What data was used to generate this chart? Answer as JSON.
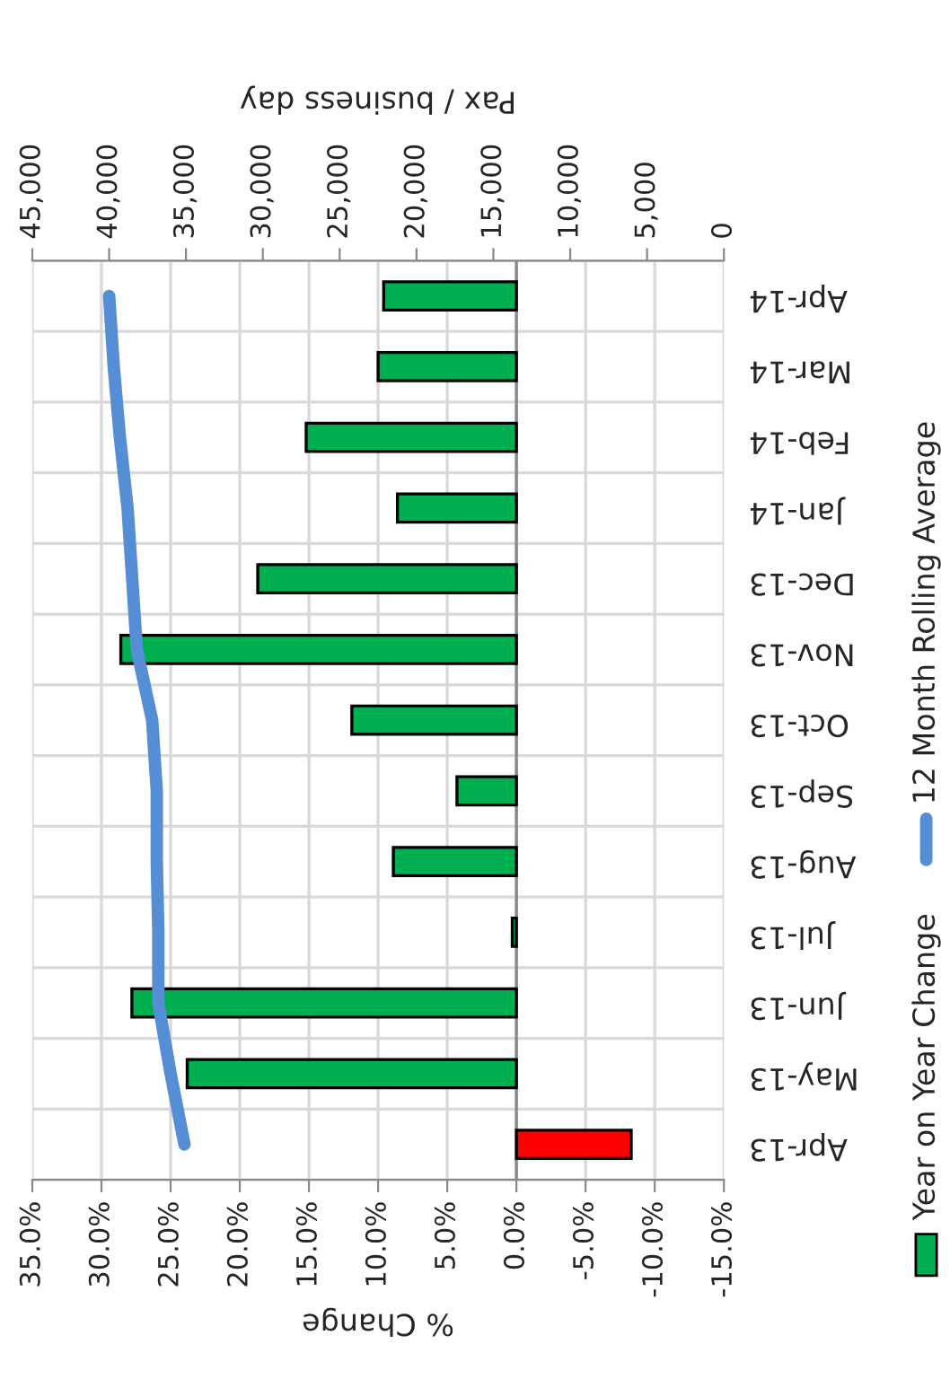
{
  "chart_data": {
    "type": "bar",
    "orientation": "horizontal",
    "categories": [
      "Apr-14",
      "Mar-14",
      "Feb-14",
      "Jan-14",
      "Dec-13",
      "Nov-13",
      "Oct-13",
      "Sep-13",
      "Aug-13",
      "Jul-13",
      "Jun-13",
      "May-13",
      "Apr-13"
    ],
    "series": [
      {
        "name": "Year on Year Change",
        "values": [
          9.6,
          10.0,
          15.2,
          8.6,
          18.7,
          28.6,
          11.9,
          4.3,
          8.9,
          0.3,
          27.8,
          23.8,
          -8.3
        ],
        "colors": [
          "#00b050",
          "#00b050",
          "#00b050",
          "#00b050",
          "#00b050",
          "#00b050",
          "#00b050",
          "#00b050",
          "#00b050",
          "#00b050",
          "#00b050",
          "#00b050",
          "#ff0000"
        ]
      },
      {
        "name": "12 Month Rolling Average",
        "type": "line",
        "axis": "x2",
        "color": "#558ed5",
        "values": [
          40000,
          39700,
          39300,
          38800,
          38500,
          38200,
          37200,
          36900,
          36900,
          36800,
          36800,
          36000,
          35100
        ]
      }
    ],
    "xlabel": "% Change",
    "x2label": "Pax / business day",
    "xlim": [
      35,
      -15
    ],
    "xticks": [
      {
        "value": 35,
        "label": "35.0%"
      },
      {
        "value": 30,
        "label": "30.0%"
      },
      {
        "value": 25,
        "label": "25.0%"
      },
      {
        "value": 20,
        "label": "20.0%"
      },
      {
        "value": 15,
        "label": "15.0%"
      },
      {
        "value": 10,
        "label": "10.0%"
      },
      {
        "value": 5,
        "label": "5.0%"
      },
      {
        "value": 0,
        "label": "0.0%"
      },
      {
        "value": -5,
        "label": "-5.0%"
      },
      {
        "value": -10,
        "label": "-10.0%"
      },
      {
        "value": -15,
        "label": "-15.0%"
      }
    ],
    "x2lim": [
      45000,
      0
    ],
    "x2ticks": [
      {
        "value": 45000,
        "label": "45,000"
      },
      {
        "value": 40000,
        "label": "40,000"
      },
      {
        "value": 35000,
        "label": "35,000"
      },
      {
        "value": 30000,
        "label": "30,000"
      },
      {
        "value": 25000,
        "label": "25,000"
      },
      {
        "value": 20000,
        "label": "20,000"
      },
      {
        "value": 15000,
        "label": "15,000"
      },
      {
        "value": 10000,
        "label": "10,000"
      },
      {
        "value": 5000,
        "label": "5,000"
      },
      0
    ],
    "grid": true,
    "legend": "right"
  }
}
